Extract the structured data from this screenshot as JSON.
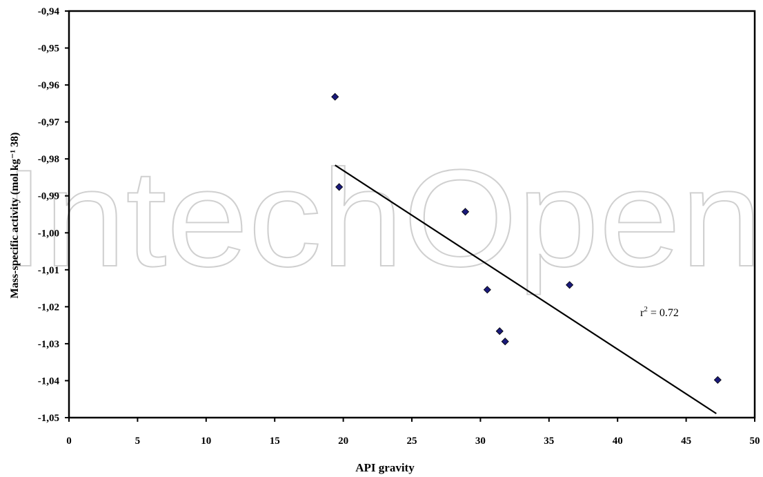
{
  "chart_data": {
    "type": "scatter",
    "xlabel": "API gravity",
    "ylabel": "Mass-specific activity (mol kg⁻¹ 38)",
    "xlim": [
      0,
      50
    ],
    "ylim": [
      -1.05,
      -0.94
    ],
    "x_ticks": [
      "0",
      "5",
      "10",
      "15",
      "20",
      "25",
      "30",
      "35",
      "40",
      "45",
      "50"
    ],
    "y_ticks": [
      "-0,94",
      "-0,95",
      "-0,96",
      "-0,97",
      "-0,98",
      "-0,99",
      "-1,00",
      "-1,01",
      "-1,02",
      "-1,03",
      "-1,04",
      "-1,05"
    ],
    "points": [
      {
        "x": 19.4,
        "y": -0.9632
      },
      {
        "x": 19.7,
        "y": -0.9876
      },
      {
        "x": 28.9,
        "y": -0.9943
      },
      {
        "x": 30.5,
        "y": -1.0154
      },
      {
        "x": 31.4,
        "y": -1.0266
      },
      {
        "x": 31.8,
        "y": -1.0294
      },
      {
        "x": 36.5,
        "y": -1.0141
      },
      {
        "x": 47.3,
        "y": -1.0398
      }
    ],
    "trendline": {
      "x": [
        19.4,
        47.2
      ],
      "y": [
        -0.9817,
        -1.0489
      ]
    },
    "annotation": "r² = 0.72",
    "marker_color": "#1a1a7a",
    "grid": false,
    "legend": "none",
    "watermark": "IntechOpen"
  }
}
